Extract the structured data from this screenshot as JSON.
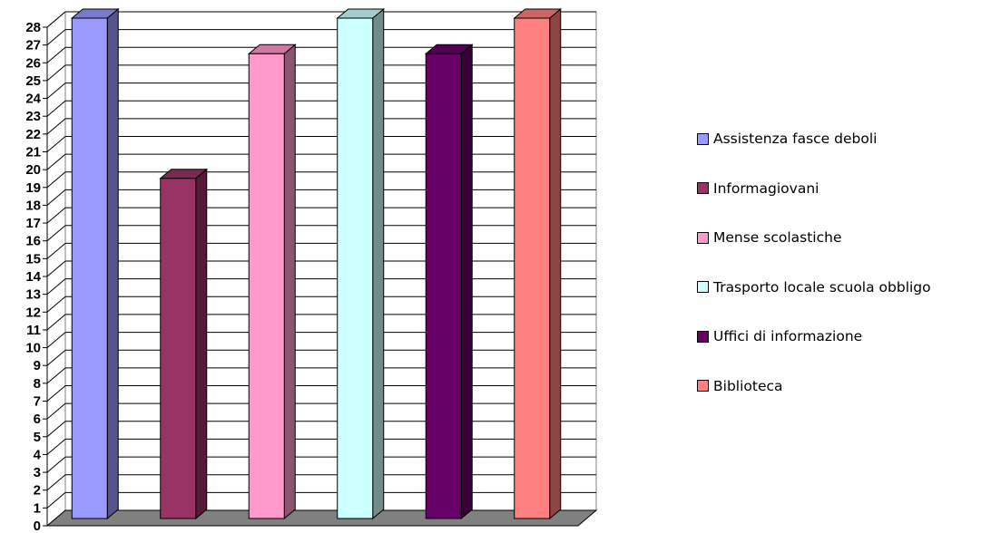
{
  "chart_data": {
    "type": "bar",
    "categories": [
      "Assistenza fasce deboli",
      "Informagiovani",
      "Mense scolastiche",
      "Trasporto locale scuola obbligo",
      "Uffici di informazione",
      "Biblioteca"
    ],
    "values": [
      28,
      19,
      26,
      28,
      26,
      28
    ],
    "colors": [
      "#9999ff",
      "#993366",
      "#ff99cc",
      "#ccffff",
      "#660066",
      "#ff8080"
    ],
    "ylim": [
      0,
      28
    ],
    "yticks": [
      "0",
      "1",
      "2",
      "3",
      "4",
      "5",
      "6",
      "7",
      "8",
      "9",
      "10",
      "11",
      "12",
      "13",
      "14",
      "15",
      "16",
      "17",
      "18",
      "19",
      "20",
      "21",
      "22",
      "23",
      "24",
      "25",
      "26",
      "27",
      "28"
    ],
    "grid": true,
    "three_d": true,
    "legend_position": "right",
    "title": "",
    "xlabel": "",
    "ylabel": ""
  }
}
